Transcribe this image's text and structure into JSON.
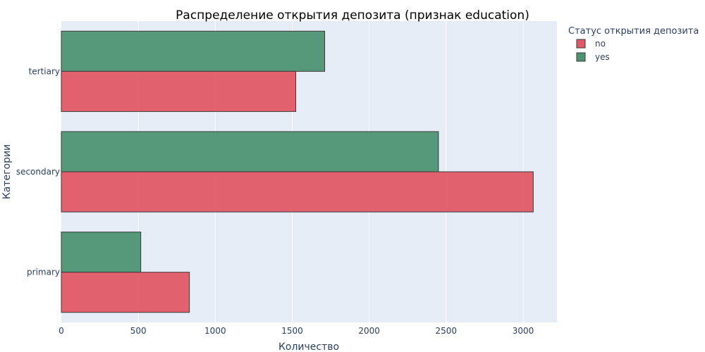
{
  "chart_data": {
    "type": "bar",
    "orientation": "horizontal",
    "title": "Распределение открытия депозита (признак education)",
    "xlabel": "Количество",
    "ylabel": "Категории",
    "categories": [
      "primary",
      "secondary",
      "tertiary"
    ],
    "series": [
      {
        "name": "no",
        "color": "#e05a66",
        "values": [
          832,
          3066,
          1523
        ]
      },
      {
        "name": "yes",
        "color": "#4e9373",
        "values": [
          516,
          2450,
          1711
        ]
      }
    ],
    "xlim": [
      0,
      3220
    ],
    "xticks": [
      0,
      500,
      1000,
      1500,
      2000,
      2500,
      3000
    ],
    "grid": true,
    "legend": {
      "title": "Статус открытия депозита",
      "position": "top-right"
    },
    "plot_background": "#e5ecf6"
  }
}
